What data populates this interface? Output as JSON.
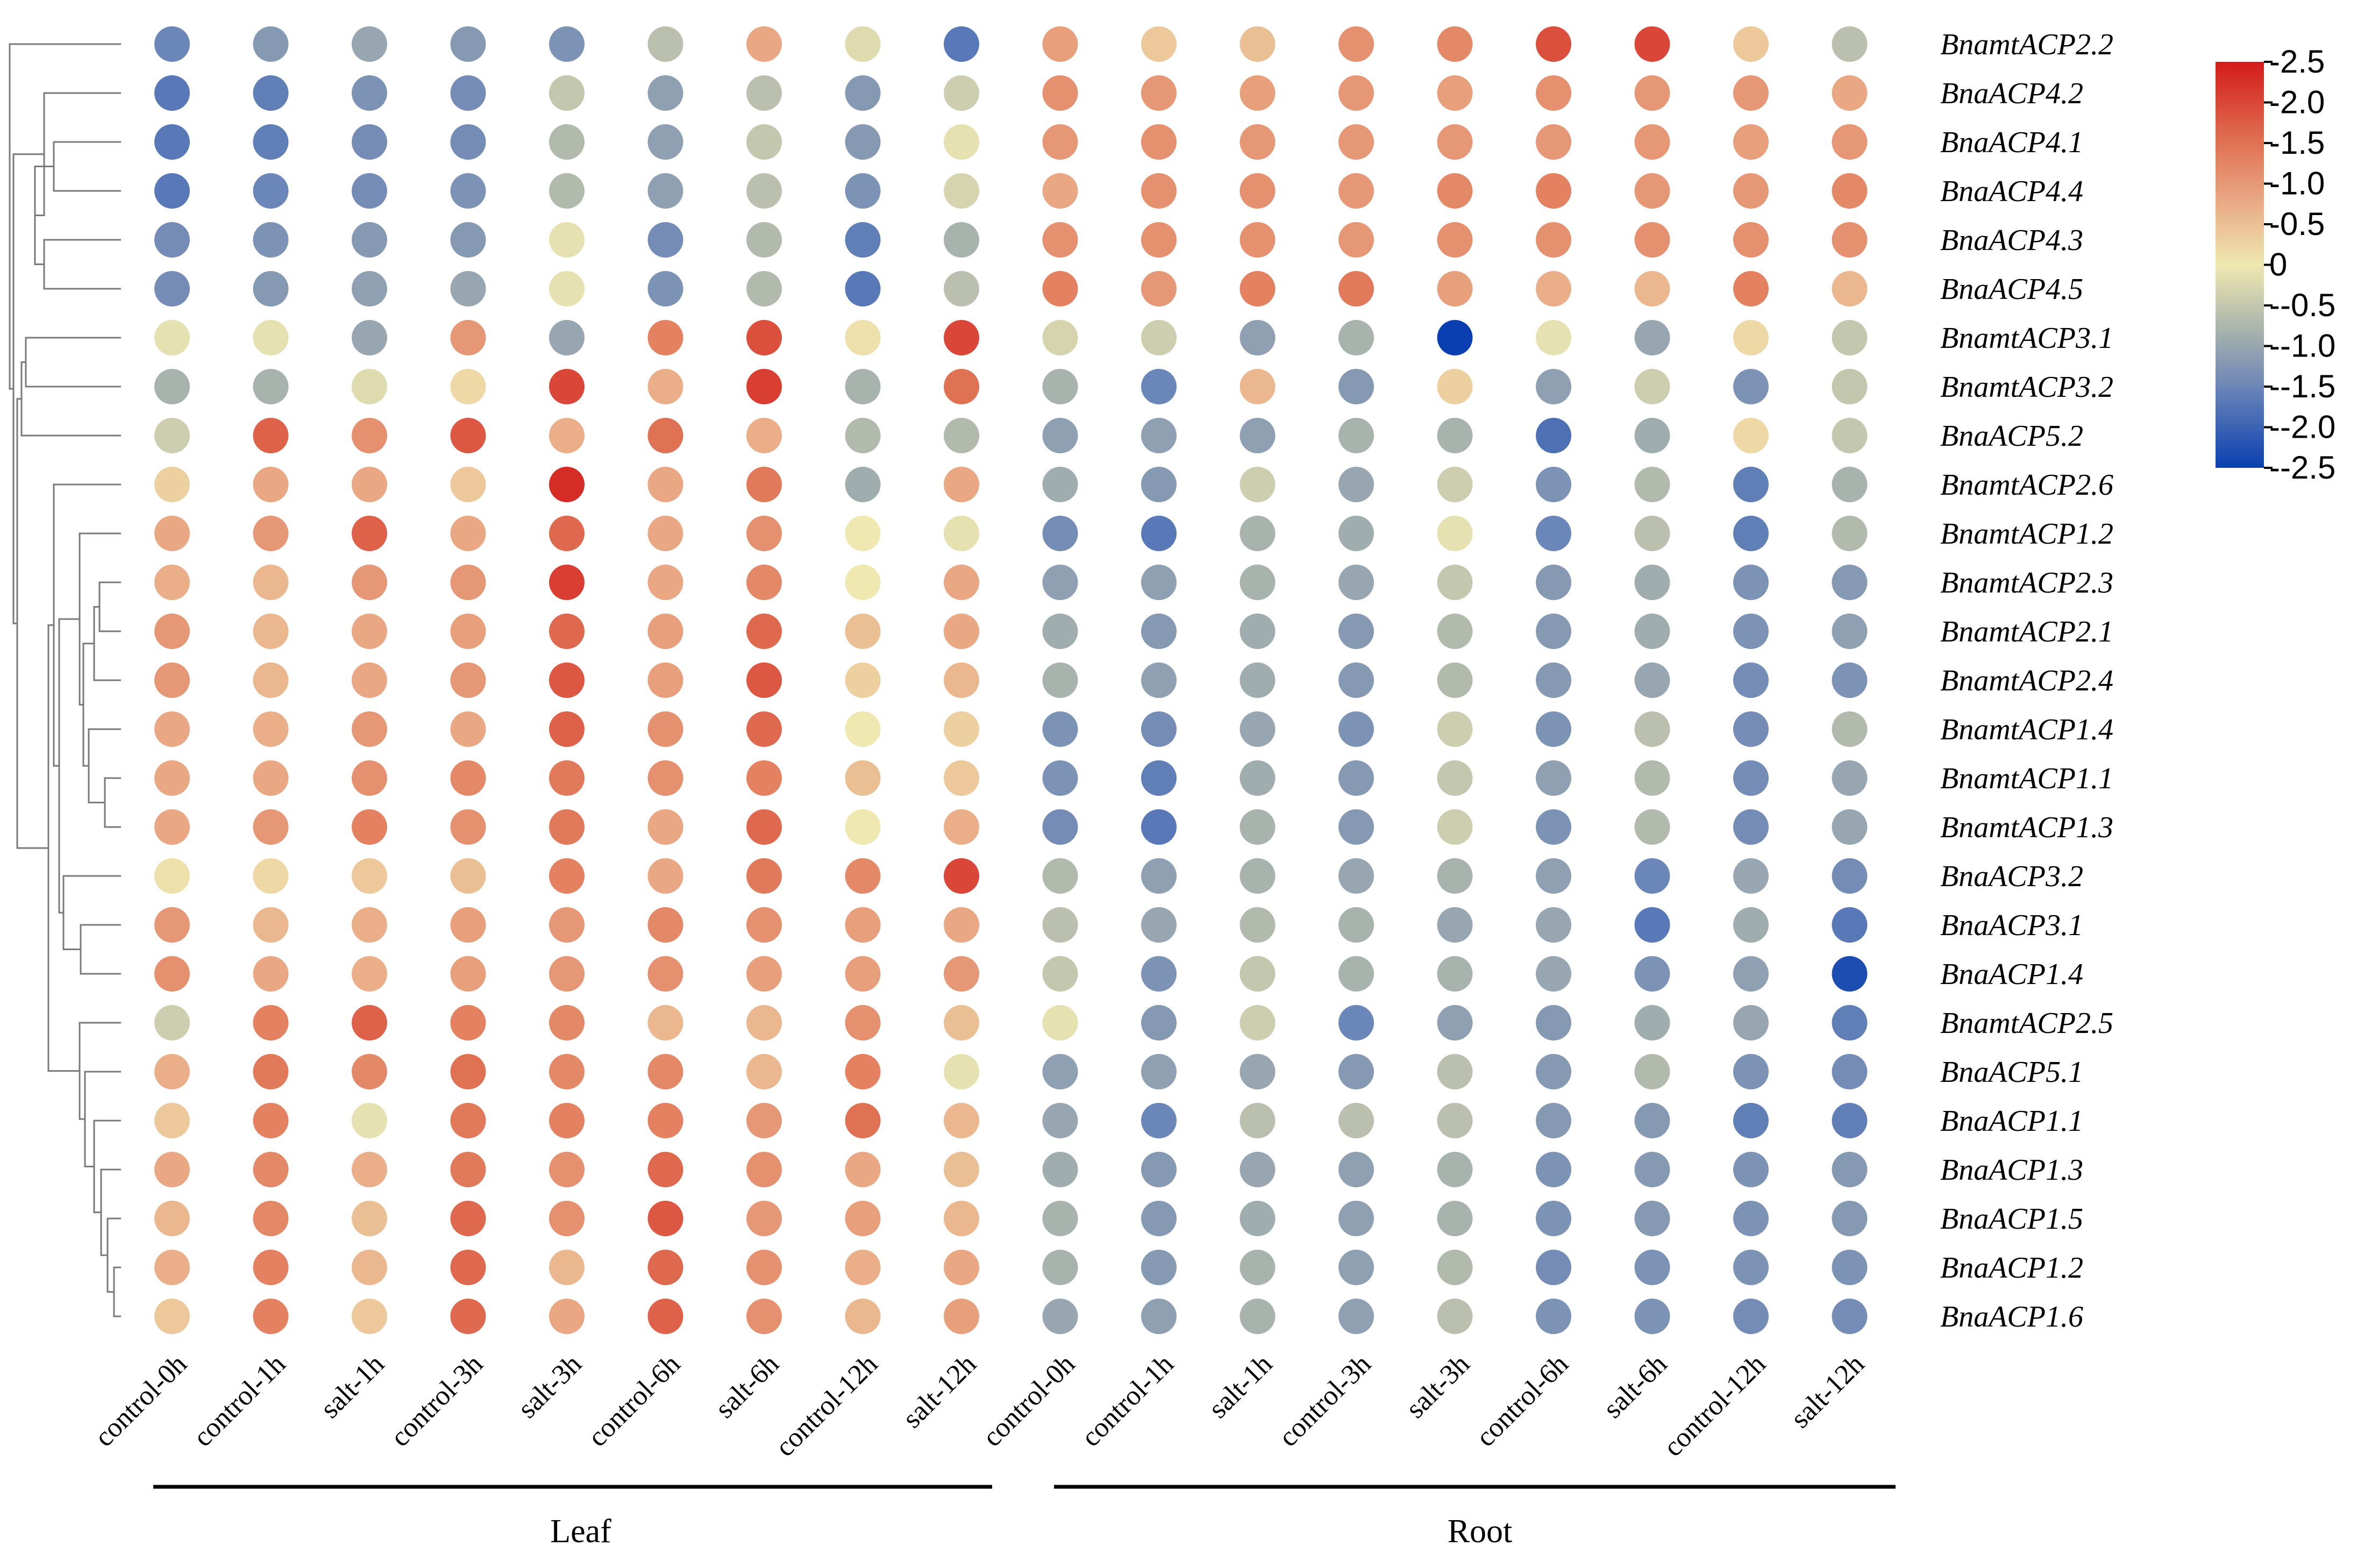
{
  "chart_data": {
    "type": "heatmap",
    "style": "dot-matrix",
    "title": "",
    "groups": [
      {
        "name": "Leaf",
        "columns": [
          "control-0h",
          "control-1h",
          "salt-1h",
          "control-3h",
          "salt-3h",
          "control-6h",
          "salt-6h",
          "control-12h",
          "salt-12h"
        ]
      },
      {
        "name": "Root",
        "columns": [
          "control-0h",
          "control-1h",
          "salt-1h",
          "control-3h",
          "salt-3h",
          "control-6h",
          "salt-6h",
          "control-12h",
          "salt-12h"
        ]
      }
    ],
    "columns": [
      "control-0h",
      "control-1h",
      "salt-1h",
      "control-3h",
      "salt-3h",
      "control-6h",
      "salt-6h",
      "control-12h",
      "salt-12h",
      "control-0h",
      "control-1h",
      "salt-1h",
      "control-3h",
      "salt-3h",
      "control-6h",
      "salt-6h",
      "control-12h",
      "salt-12h"
    ],
    "rows": [
      "BnamtACP2.2",
      "BnaACP4.2",
      "BnaACP4.1",
      "BnaACP4.4",
      "BnaACP4.3",
      "BnaACP4.5",
      "BnamtACP3.1",
      "BnamtACP3.2",
      "BnaACP5.2",
      "BnamtACP2.6",
      "BnamtACP1.2",
      "BnamtACP2.3",
      "BnamtACP2.1",
      "BnamtACP2.4",
      "BnamtACP1.4",
      "BnamtACP1.1",
      "BnamtACP1.3",
      "BnaACP3.2",
      "BnaACP3.1",
      "BnaACP1.4",
      "BnamtACP2.5",
      "BnaACP5.1",
      "BnaACP1.1",
      "BnaACP1.3",
      "BnaACP1.5",
      "BnaACP1.2",
      "BnaACP1.6"
    ],
    "values": [
      [
        -1.5,
        -1.2,
        -1.0,
        -1.2,
        -1.3,
        -0.6,
        0.8,
        -0.2,
        -1.7,
        0.9,
        0.4,
        0.5,
        1.1,
        1.2,
        1.9,
        2.0,
        0.4,
        -0.6
      ],
      [
        -1.7,
        -1.6,
        -1.3,
        -1.4,
        -0.5,
        -1.1,
        -0.6,
        -1.2,
        -0.4,
        1.1,
        1.0,
        0.9,
        1.0,
        0.9,
        1.1,
        1.0,
        1.0,
        0.8
      ],
      [
        -1.7,
        -1.6,
        -1.4,
        -1.4,
        -0.7,
        -1.1,
        -0.5,
        -1.2,
        -0.1,
        1.0,
        1.1,
        1.0,
        1.0,
        1.0,
        1.0,
        1.0,
        0.9,
        1.0
      ],
      [
        -1.7,
        -1.5,
        -1.4,
        -1.3,
        -0.7,
        -1.1,
        -0.6,
        -1.3,
        -0.3,
        0.8,
        1.1,
        1.1,
        1.0,
        1.2,
        1.3,
        1.0,
        1.0,
        1.2
      ],
      [
        -1.4,
        -1.3,
        -1.2,
        -1.2,
        -0.1,
        -1.4,
        -0.7,
        -1.6,
        -0.8,
        1.1,
        1.1,
        1.1,
        1.0,
        1.1,
        1.1,
        1.1,
        1.1,
        1.1
      ],
      [
        -1.4,
        -1.2,
        -1.1,
        -1.0,
        -0.1,
        -1.3,
        -0.7,
        -1.7,
        -0.6,
        1.3,
        1.0,
        1.3,
        1.4,
        0.9,
        0.7,
        0.6,
        1.3,
        0.6
      ],
      [
        -0.1,
        -0.1,
        -1.0,
        1.0,
        -1.0,
        1.3,
        1.9,
        0.1,
        2.0,
        -0.3,
        -0.4,
        -1.1,
        -0.8,
        -2.5,
        -0.1,
        -1.0,
        0.2,
        -0.5
      ],
      [
        -0.8,
        -0.8,
        -0.2,
        0.2,
        2.0,
        0.7,
        2.1,
        -0.8,
        1.5,
        -0.8,
        -1.5,
        0.6,
        -1.2,
        0.3,
        -1.1,
        -0.4,
        -1.3,
        -0.5
      ],
      [
        -0.4,
        1.7,
        1.1,
        1.8,
        0.7,
        1.5,
        0.7,
        -0.7,
        -0.7,
        -1.1,
        -1.1,
        -1.1,
        -0.8,
        -0.8,
        -1.8,
        -0.9,
        0.2,
        -0.5
      ],
      [
        0.3,
        0.8,
        0.8,
        0.4,
        2.3,
        0.8,
        1.4,
        -0.9,
        0.8,
        -0.9,
        -1.2,
        -0.4,
        -1.0,
        -0.4,
        -1.3,
        -0.7,
        -1.6,
        -0.8
      ],
      [
        0.8,
        1.0,
        1.7,
        0.8,
        1.6,
        0.8,
        1.1,
        0.0,
        -0.1,
        -1.4,
        -1.7,
        -0.8,
        -0.9,
        -0.1,
        -1.5,
        -0.6,
        -1.6,
        -0.7
      ],
      [
        0.7,
        0.6,
        1.0,
        1.0,
        2.1,
        0.8,
        1.2,
        0.0,
        0.8,
        -1.1,
        -1.1,
        -0.8,
        -1.0,
        -0.5,
        -1.2,
        -0.9,
        -1.3,
        -1.2
      ],
      [
        1.0,
        0.6,
        0.8,
        0.9,
        1.6,
        0.9,
        1.6,
        0.5,
        0.8,
        -0.9,
        -1.2,
        -0.9,
        -1.2,
        -0.7,
        -1.2,
        -0.9,
        -1.3,
        -1.1
      ],
      [
        1.0,
        0.6,
        0.8,
        1.0,
        1.8,
        0.9,
        1.8,
        0.3,
        0.6,
        -0.8,
        -1.1,
        -0.9,
        -1.2,
        -0.7,
        -1.2,
        -1.0,
        -1.4,
        -1.3
      ],
      [
        0.8,
        0.7,
        1.0,
        0.8,
        1.7,
        1.1,
        1.6,
        0.0,
        0.3,
        -1.3,
        -1.4,
        -1.0,
        -1.3,
        -0.4,
        -1.3,
        -0.6,
        -1.4,
        -0.7
      ],
      [
        0.8,
        0.8,
        1.1,
        1.2,
        1.4,
        1.1,
        1.3,
        0.5,
        0.4,
        -1.3,
        -1.6,
        -0.9,
        -1.2,
        -0.5,
        -1.1,
        -0.7,
        -1.4,
        -1.0
      ],
      [
        0.8,
        1.0,
        1.3,
        1.1,
        1.4,
        0.8,
        1.6,
        0.0,
        0.7,
        -1.4,
        -1.7,
        -0.8,
        -1.2,
        -0.4,
        -1.3,
        -0.7,
        -1.4,
        -1.0
      ],
      [
        0.1,
        0.2,
        0.4,
        0.5,
        1.3,
        0.8,
        1.4,
        1.2,
        2.0,
        -0.7,
        -1.1,
        -0.8,
        -1.0,
        -0.8,
        -1.1,
        -1.5,
        -1.0,
        -1.4
      ],
      [
        1.0,
        0.6,
        0.7,
        0.9,
        1.0,
        1.2,
        1.1,
        0.9,
        0.8,
        -0.6,
        -1.0,
        -0.7,
        -0.8,
        -1.0,
        -1.0,
        -1.7,
        -0.9,
        -1.7
      ],
      [
        1.1,
        0.8,
        0.7,
        0.9,
        1.0,
        1.1,
        0.9,
        0.9,
        1.0,
        -0.5,
        -1.3,
        -0.5,
        -0.8,
        -0.8,
        -1.0,
        -1.3,
        -1.1,
        -2.3
      ],
      [
        -0.4,
        1.3,
        1.7,
        1.3,
        1.2,
        0.6,
        0.6,
        1.1,
        0.5,
        -0.1,
        -1.2,
        -0.4,
        -1.5,
        -1.1,
        -1.2,
        -0.9,
        -1.0,
        -1.6
      ],
      [
        0.7,
        1.4,
        1.2,
        1.5,
        1.2,
        1.2,
        0.6,
        1.3,
        -0.1,
        -1.1,
        -1.1,
        -1.0,
        -1.2,
        -0.6,
        -1.2,
        -0.7,
        -1.3,
        -1.4
      ],
      [
        0.4,
        1.3,
        -0.1,
        1.4,
        1.3,
        1.3,
        1.0,
        1.5,
        0.6,
        -1.0,
        -1.5,
        -0.6,
        -0.6,
        -0.6,
        -1.2,
        -1.2,
        -1.6,
        -1.6
      ],
      [
        0.8,
        1.2,
        0.7,
        1.4,
        1.1,
        1.6,
        1.1,
        0.8,
        0.5,
        -0.9,
        -1.2,
        -1.0,
        -1.1,
        -0.8,
        -1.3,
        -1.2,
        -1.3,
        -1.2
      ],
      [
        0.6,
        1.2,
        0.5,
        1.6,
        1.1,
        1.8,
        1.0,
        0.9,
        0.6,
        -0.8,
        -1.2,
        -0.9,
        -1.1,
        -0.8,
        -1.3,
        -1.2,
        -1.3,
        -1.2
      ],
      [
        0.7,
        1.3,
        0.6,
        1.6,
        0.6,
        1.6,
        1.1,
        0.7,
        0.8,
        -0.8,
        -1.2,
        -0.8,
        -1.1,
        -0.7,
        -1.4,
        -1.3,
        -1.3,
        -1.3
      ],
      [
        0.4,
        1.3,
        0.4,
        1.6,
        0.8,
        1.7,
        1.1,
        0.6,
        0.9,
        -1.0,
        -1.1,
        -0.8,
        -1.1,
        -0.6,
        -1.3,
        -1.3,
        -1.4,
        -1.4
      ]
    ],
    "color_scale": {
      "min": -2.5,
      "max": 2.5,
      "stops": [
        {
          "value": -2.5,
          "color": "#0b3fb1"
        },
        {
          "value": -1.5,
          "color": "#6b86b8"
        },
        {
          "value": -0.8,
          "color": "#a9b3ad"
        },
        {
          "value": 0.0,
          "color": "#efe8b0"
        },
        {
          "value": 0.8,
          "color": "#e9a783"
        },
        {
          "value": 1.5,
          "color": "#e07254"
        },
        {
          "value": 2.5,
          "color": "#d41b1b"
        }
      ],
      "tick_labels": [
        "-2.5",
        "-2.0",
        "-1.5",
        "-1.0",
        "-0.5",
        "0",
        "--0.5",
        "--1.0",
        "--1.5",
        "--2.0",
        "--2.5"
      ]
    },
    "dendrogram": "hierarchical row clustering (left)",
    "legend_position": "top-right",
    "xlabel": "",
    "ylabel": ""
  }
}
